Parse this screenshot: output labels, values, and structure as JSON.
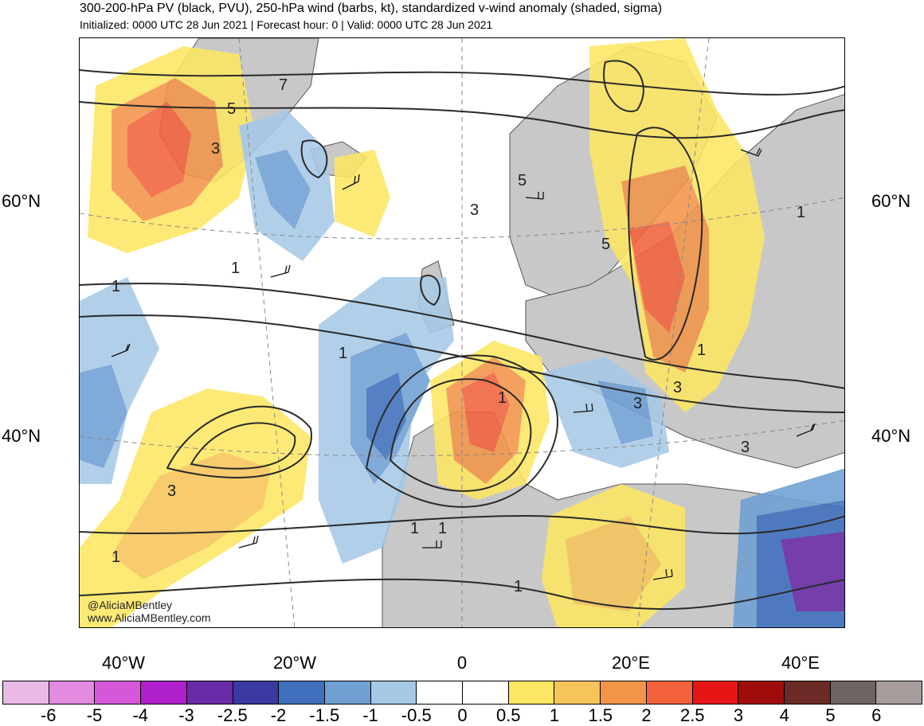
{
  "header": {
    "title": "300-200-hPa PV (black, PVU), 250-hPa wind (barbs, kt), standardized v-wind anomaly (shaded, sigma)",
    "subtitle": "Initialized: 0000 UTC 28 Jun 2021 | Forecast hour: 0 | Valid: 0000 UTC 28 Jun 2021"
  },
  "axes": {
    "lat_left": [
      "60°N",
      "40°N"
    ],
    "lat_right": [
      "60°N",
      "40°N"
    ],
    "lon": [
      "40°W",
      "20°W",
      "0",
      "20°E",
      "40°E"
    ]
  },
  "credits": {
    "twitter": "@AliciaMBentley",
    "website": "www.AliciaMBentley.com"
  },
  "contour_labels": [
    "7",
    "5",
    "3",
    "1",
    "5",
    "3",
    "1",
    "1",
    "3",
    "1",
    "3",
    "3",
    "1",
    "1",
    "3",
    "1",
    "1",
    "5",
    "1",
    "1"
  ],
  "colorbar": {
    "colors": [
      "#ebb9e6",
      "#e38be0",
      "#d558d9",
      "#b020cc",
      "#6a2ba8",
      "#3a3aa0",
      "#3f6fbd",
      "#6f9fd3",
      "#a8c9e6",
      "#ffffff",
      "#ffffff",
      "#fde663",
      "#f6c45b",
      "#f39549",
      "#f1623d",
      "#e61616",
      "#9e0c0c",
      "#6b2a25",
      "#6e6463",
      "#a69c9c"
    ],
    "ticks": [
      "-6",
      "-5",
      "-4",
      "-3",
      "-2.5",
      "-2",
      "-1.5",
      "-1",
      "-0.5",
      "0",
      "0.5",
      "1",
      "1.5",
      "2",
      "2.5",
      "3",
      "4",
      "5",
      "6"
    ]
  },
  "colors": {
    "land": "#c8c8c8",
    "contour": "#2a2a2a",
    "border": "#555555"
  }
}
